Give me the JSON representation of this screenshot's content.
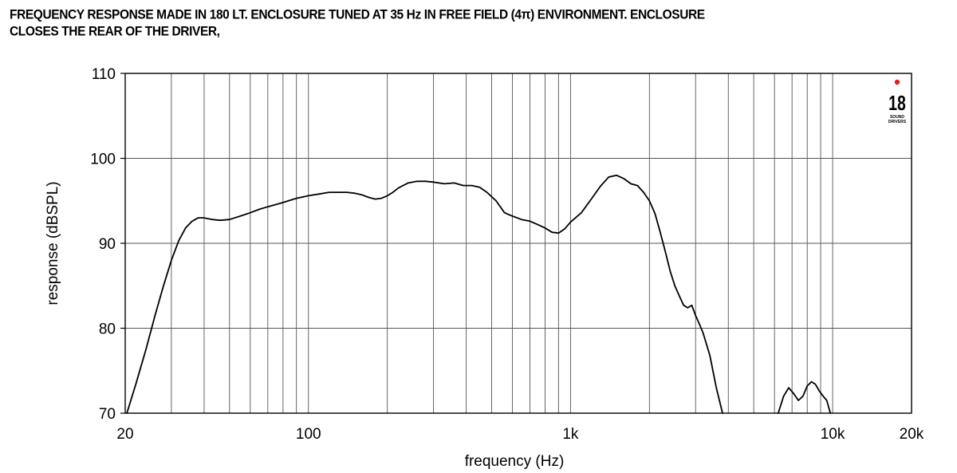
{
  "header": {
    "title_line1": "FREQUENCY RESPONSE MADE IN 180 LT. ENCLOSURE TUNED AT 35 Hz IN FREE FIELD (4π) ENVIRONMENT. ENCLOSURE",
    "title_line2": "CLOSES THE REAR OF THE DRIVER,"
  },
  "logo": {
    "text": "18",
    "sub1": "SOUND",
    "sub2": "DRIVERS",
    "accent_color": "#e02020"
  },
  "chart_data": {
    "type": "line",
    "xscale": "log",
    "xlim": [
      20,
      20000
    ],
    "ylim": [
      70,
      110
    ],
    "xlabel": "frequency (Hz)",
    "ylabel": "response (dBSPL)",
    "xticks": [
      {
        "value": 20,
        "label": "20"
      },
      {
        "value": 100,
        "label": "100"
      },
      {
        "value": 1000,
        "label": "1k"
      },
      {
        "value": 10000,
        "label": "10k"
      },
      {
        "value": 20000,
        "label": "20k"
      }
    ],
    "yticks": [
      {
        "value": 70,
        "label": "70"
      },
      {
        "value": 80,
        "label": "80"
      },
      {
        "value": 90,
        "label": "90"
      },
      {
        "value": 100,
        "label": "100"
      },
      {
        "value": 110,
        "label": "110"
      }
    ],
    "grid": true,
    "line_color": "#000000",
    "segments": [
      {
        "x": [
          20.3,
          22,
          24,
          26,
          28,
          30,
          32,
          34,
          36,
          38,
          40,
          43,
          46,
          50,
          55,
          60,
          65,
          70,
          80,
          90,
          100,
          110,
          120,
          130,
          140,
          150,
          160,
          170,
          180,
          190,
          200,
          210,
          220,
          240,
          260,
          280,
          300,
          330,
          360,
          390,
          420,
          450,
          480,
          520,
          560,
          600,
          650,
          700,
          750,
          800,
          850,
          900,
          950,
          1000,
          1100,
          1200,
          1300,
          1400,
          1500,
          1600,
          1700,
          1800,
          1900,
          2000,
          2100,
          2200,
          2300,
          2400,
          2500,
          2600,
          2700,
          2800,
          2900,
          3000,
          3100,
          3200,
          3400,
          3600,
          3800
        ],
        "y": [
          70.0,
          73.5,
          77.5,
          81.5,
          85.0,
          88.0,
          90.3,
          91.8,
          92.6,
          93.0,
          93.0,
          92.8,
          92.7,
          92.8,
          93.2,
          93.6,
          94.0,
          94.3,
          94.8,
          95.3,
          95.6,
          95.8,
          96.0,
          96.0,
          96.0,
          95.9,
          95.7,
          95.4,
          95.2,
          95.3,
          95.6,
          96.0,
          96.5,
          97.1,
          97.3,
          97.3,
          97.2,
          97.0,
          97.1,
          96.8,
          96.8,
          96.6,
          96.0,
          95.0,
          93.6,
          93.2,
          92.8,
          92.6,
          92.2,
          91.8,
          91.3,
          91.2,
          91.7,
          92.5,
          93.6,
          95.2,
          96.7,
          97.8,
          98.0,
          97.6,
          97.0,
          96.8,
          96.0,
          95.0,
          93.5,
          91.3,
          89.0,
          86.7,
          85.0,
          83.8,
          82.7,
          82.4,
          82.7,
          81.5,
          80.5,
          79.5,
          76.8,
          73.0,
          70.0
        ]
      },
      {
        "x": [
          6200,
          6500,
          6800,
          7100,
          7400,
          7700,
          8000,
          8300,
          8600,
          8900,
          9200,
          9500,
          9800
        ],
        "y": [
          70.0,
          72.0,
          73.0,
          72.3,
          71.5,
          72.0,
          73.2,
          73.7,
          73.4,
          72.6,
          72.0,
          71.5,
          70.0
        ]
      }
    ]
  }
}
